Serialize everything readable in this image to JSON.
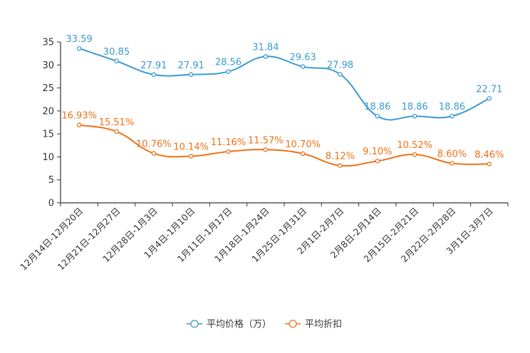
{
  "chart_data": {
    "type": "line",
    "title": "",
    "xlabel": "",
    "ylabel": "",
    "ylim": [
      0,
      35
    ],
    "yticks": [
      0,
      5,
      10,
      15,
      20,
      25,
      30,
      35
    ],
    "grid": false,
    "legend_position": "bottom-center",
    "categories": [
      "12月14日-12月20日",
      "12月21日-12月27日",
      "12月28日-1月3日",
      "1月4日-1月10日",
      "1月11日-1月17日",
      "1月18日-1月24日",
      "1月25日-1月31日",
      "2月1日-2月7日",
      "2月8日-2月14日",
      "2月15日-2月21日",
      "2月22日-2月28日",
      "3月1日-3月7日"
    ],
    "series": [
      {
        "name": "平均价格（万）",
        "color": "#3a9bcf",
        "values": [
          33.59,
          30.85,
          27.91,
          27.91,
          28.56,
          31.84,
          29.63,
          27.98,
          18.86,
          18.86,
          18.86,
          22.71
        ],
        "labels": [
          "33.59",
          "30.85",
          "27.91",
          "27.91",
          "28.56",
          "31.84",
          "29.63",
          "27.98",
          "18.86",
          "18.86",
          "18.86",
          "22.71"
        ]
      },
      {
        "name": "平均折扣",
        "color": "#f07115",
        "values": [
          16.93,
          15.51,
          10.76,
          10.14,
          11.16,
          11.57,
          10.7,
          8.12,
          9.1,
          10.52,
          8.6,
          8.46
        ],
        "labels": [
          "16.93%",
          "15.51%",
          "10.76%",
          "10.14%",
          "11.16%",
          "11.57%",
          "10.70%",
          "8.12%",
          "9.10%",
          "10.52%",
          "8.60%",
          "8.46%"
        ]
      }
    ]
  }
}
